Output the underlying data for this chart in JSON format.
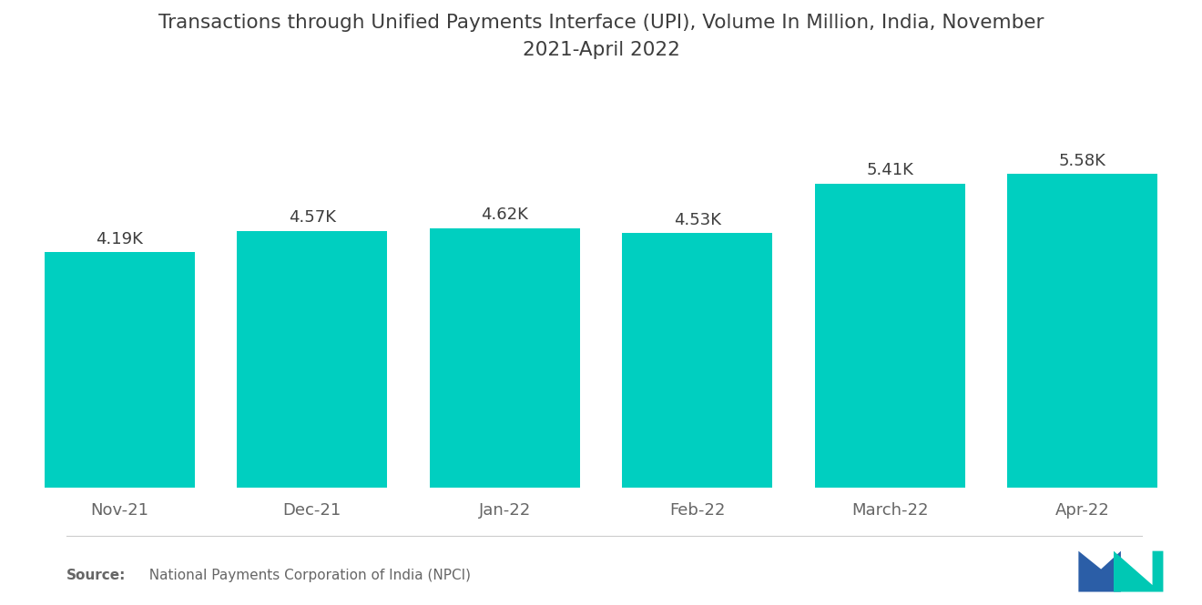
{
  "title": "Transactions through Unified Payments Interface (UPI), Volume In Million, India, November\n2021-April 2022",
  "categories": [
    "Nov-21",
    "Dec-21",
    "Jan-22",
    "Feb-22",
    "March-22",
    "Apr-22"
  ],
  "values": [
    4190,
    4570,
    4620,
    4530,
    5410,
    5580
  ],
  "labels": [
    "4.19K",
    "4.57K",
    "4.62K",
    "4.53K",
    "5.41K",
    "5.58K"
  ],
  "bar_color": "#00CFC0",
  "background_color": "#FFFFFF",
  "title_fontsize": 15.5,
  "label_fontsize": 13,
  "tick_fontsize": 13,
  "source_bold": "Source:",
  "source_rest": "  National Payments Corporation of India (NPCI)",
  "ylim": [
    0,
    7200
  ],
  "title_color": "#3D3D3D",
  "tick_color": "#666666",
  "label_color": "#3D3D3D",
  "bar_width": 0.78,
  "logo_blue": "#2B5EA7",
  "logo_teal": "#00C8B4"
}
